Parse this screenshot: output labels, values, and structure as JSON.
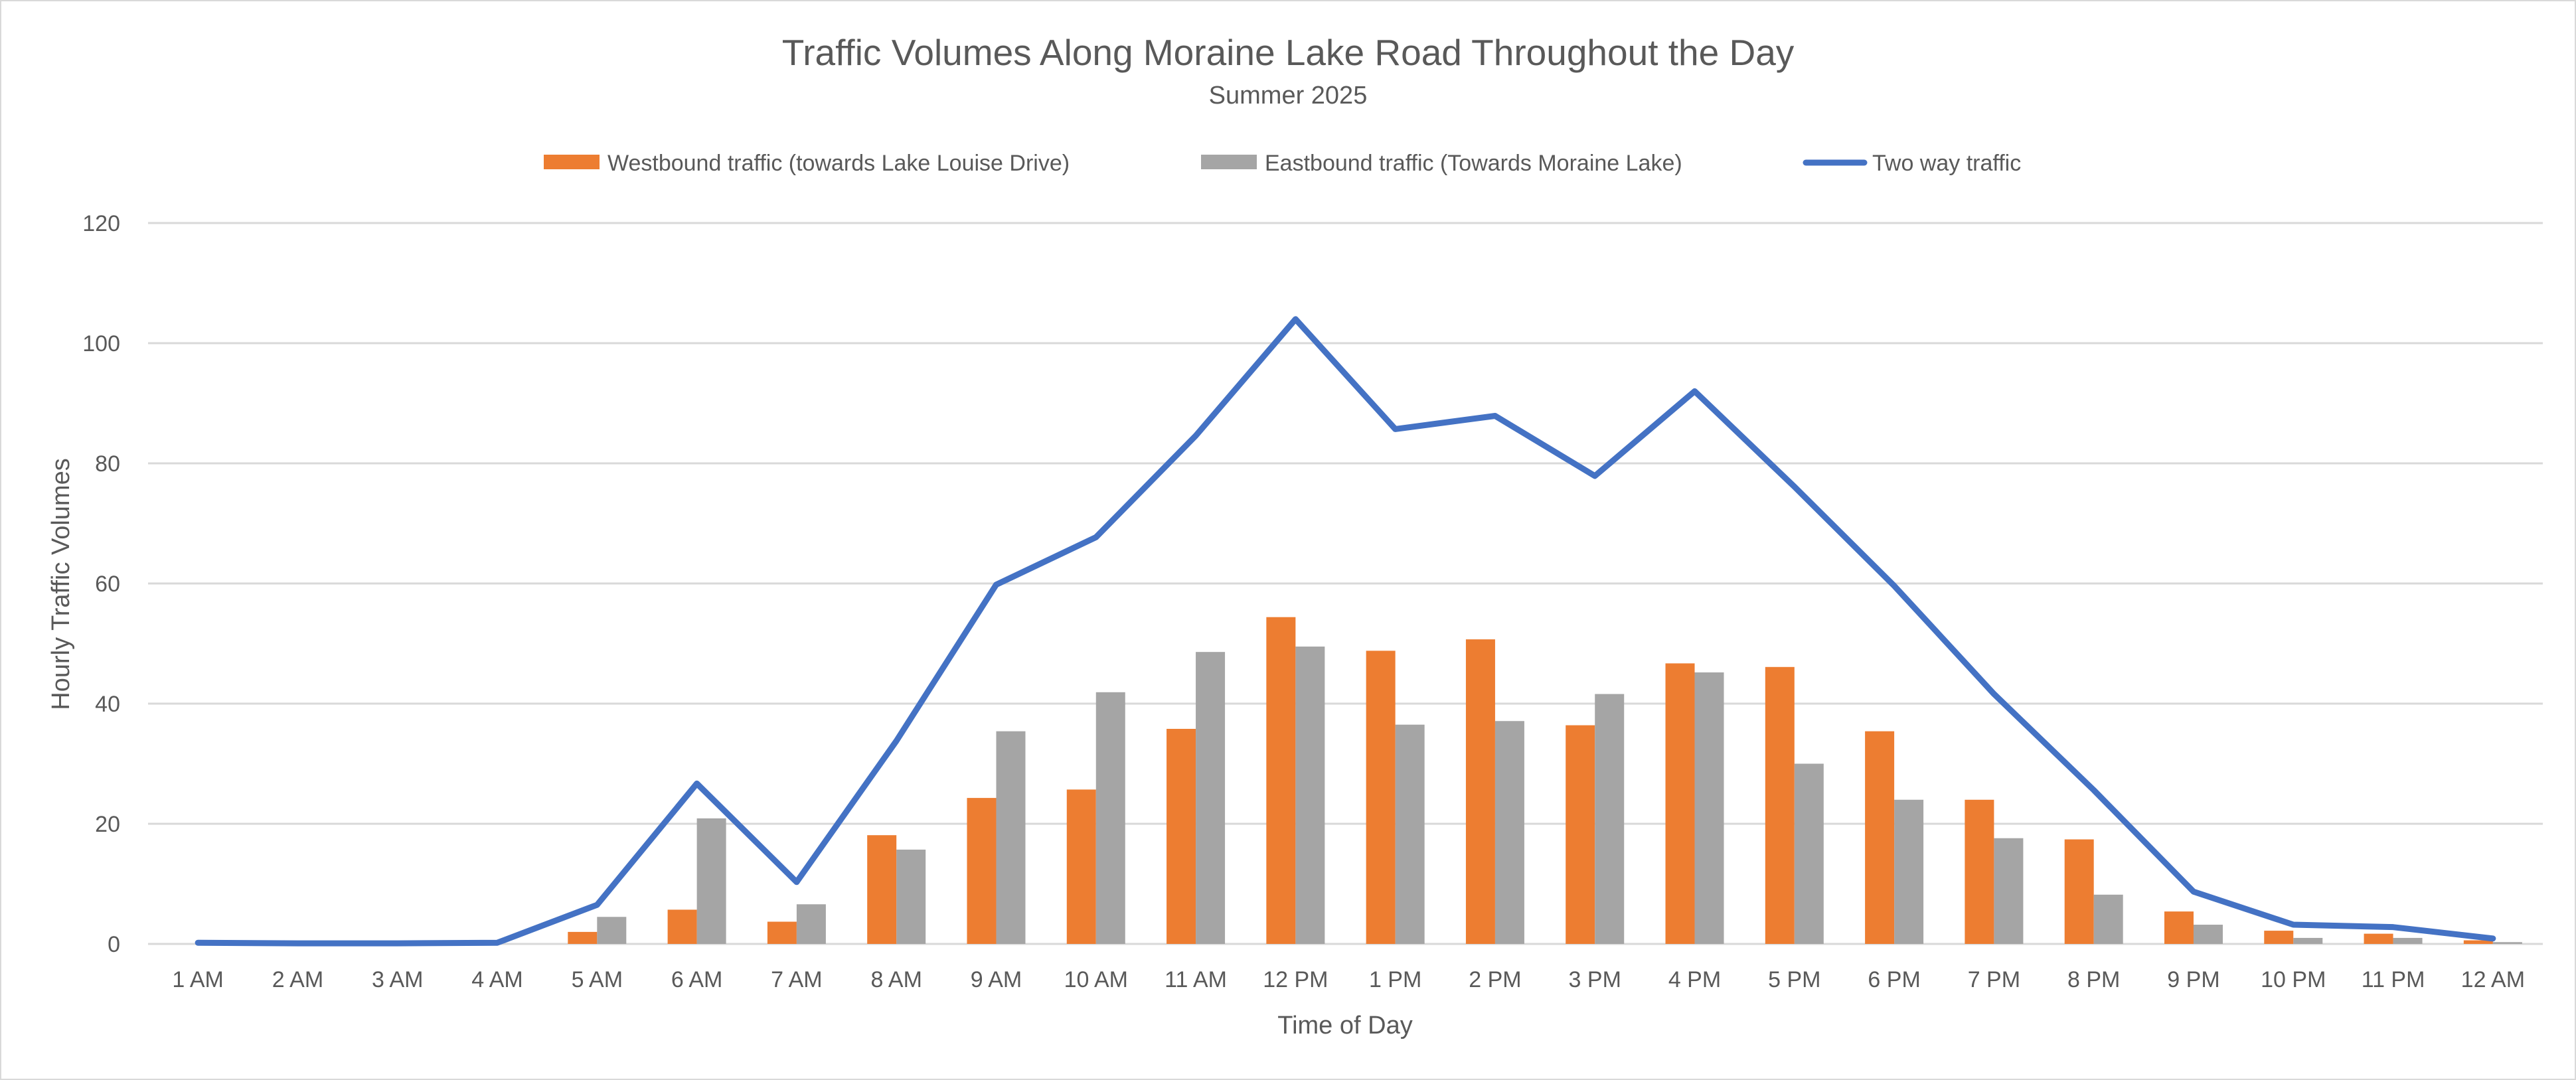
{
  "chart_data": {
    "type": "bar",
    "title": "Traffic Volumes Along Moraine Lake Road Throughout the Day",
    "subtitle": "Summer 2025",
    "xlabel": "Time of Day",
    "ylabel": "Hourly Traffic Volumes",
    "ylim": [
      0,
      120
    ],
    "yticks": [
      0,
      20,
      40,
      60,
      80,
      100,
      120
    ],
    "grid": true,
    "legend_position": "top",
    "categories": [
      "1 AM",
      "2 AM",
      "3 AM",
      "4 AM",
      "5 AM",
      "6 AM",
      "7 AM",
      "8 AM",
      "9 AM",
      "10 AM",
      "11 AM",
      "12 PM",
      "1 PM",
      "2 PM",
      "3 PM",
      "4 PM",
      "5 PM",
      "6 PM",
      "7 PM",
      "8 PM",
      "9 PM",
      "10 PM",
      "11 PM",
      "12 AM"
    ],
    "series": [
      {
        "name": "Westbound traffic (towards Lake Louise Drive)",
        "type": "bar",
        "color": "#ED7D31",
        "values": [
          0,
          0,
          0,
          0,
          2.0,
          5.7,
          3.7,
          18.1,
          24.3,
          25.7,
          35.8,
          54.4,
          48.8,
          50.7,
          36.4,
          46.7,
          46.1,
          35.4,
          24.0,
          17.4,
          5.4,
          2.2,
          1.7,
          0.6
        ]
      },
      {
        "name": "Eastbound traffic (Towards Moraine Lake)",
        "type": "bar",
        "color": "#A5A5A5",
        "values": [
          0,
          0,
          0,
          0,
          4.5,
          20.9,
          6.6,
          15.7,
          35.4,
          41.9,
          48.6,
          49.5,
          36.5,
          37.1,
          41.6,
          45.2,
          30.0,
          24.0,
          17.6,
          8.2,
          3.2,
          1.0,
          1.0,
          0.3
        ]
      },
      {
        "name": "Two way traffic",
        "type": "line",
        "color": "#4472C4",
        "values": [
          0.2,
          0.1,
          0.1,
          0.2,
          6.5,
          26.7,
          10.3,
          33.8,
          59.8,
          67.7,
          84.6,
          104.0,
          85.7,
          87.9,
          77.9,
          92.0,
          76.1,
          59.6,
          41.6,
          25.6,
          8.7,
          3.2,
          2.8,
          0.9
        ]
      }
    ]
  }
}
